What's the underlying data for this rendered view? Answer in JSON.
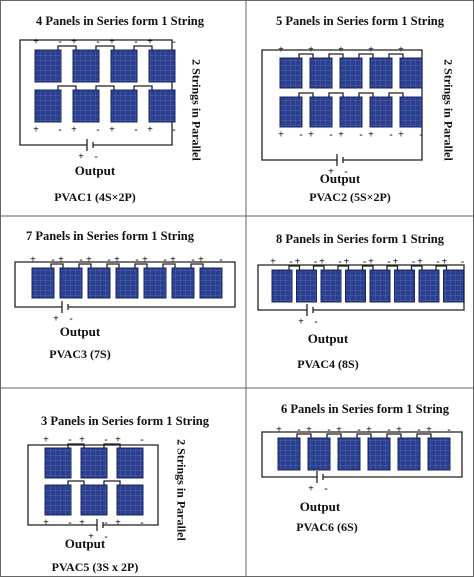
{
  "symbols": {
    "plus": "+",
    "minus": "-"
  },
  "cells": [
    {
      "title": "4 Panels in Series form 1 String",
      "side_label": "2 Strings in Parallel",
      "output": "Output",
      "caption": "PVAC1 (4S×2P)"
    },
    {
      "title": "5 Panels in Series form 1 String",
      "side_label": "2 Strings in Parallel",
      "output": "Output",
      "caption": "PVAC2 (5S×2P)"
    },
    {
      "title": "7 Panels in Series form 1 String",
      "output": "Output",
      "caption": "PVAC3 (7S)"
    },
    {
      "title": "8 Panels in Series form 1 String",
      "output": "Output",
      "caption": "PVAC4 (8S)"
    },
    {
      "title": "3 Panels in Series form 1 String",
      "side_label": "2 Strings in Parallel",
      "output": "Output",
      "caption": "PVAC5 (3S x 2P)"
    },
    {
      "title": "6 Panels in Series form 1 String",
      "output": "Output",
      "caption": "PVAC6 (6S)"
    }
  ]
}
